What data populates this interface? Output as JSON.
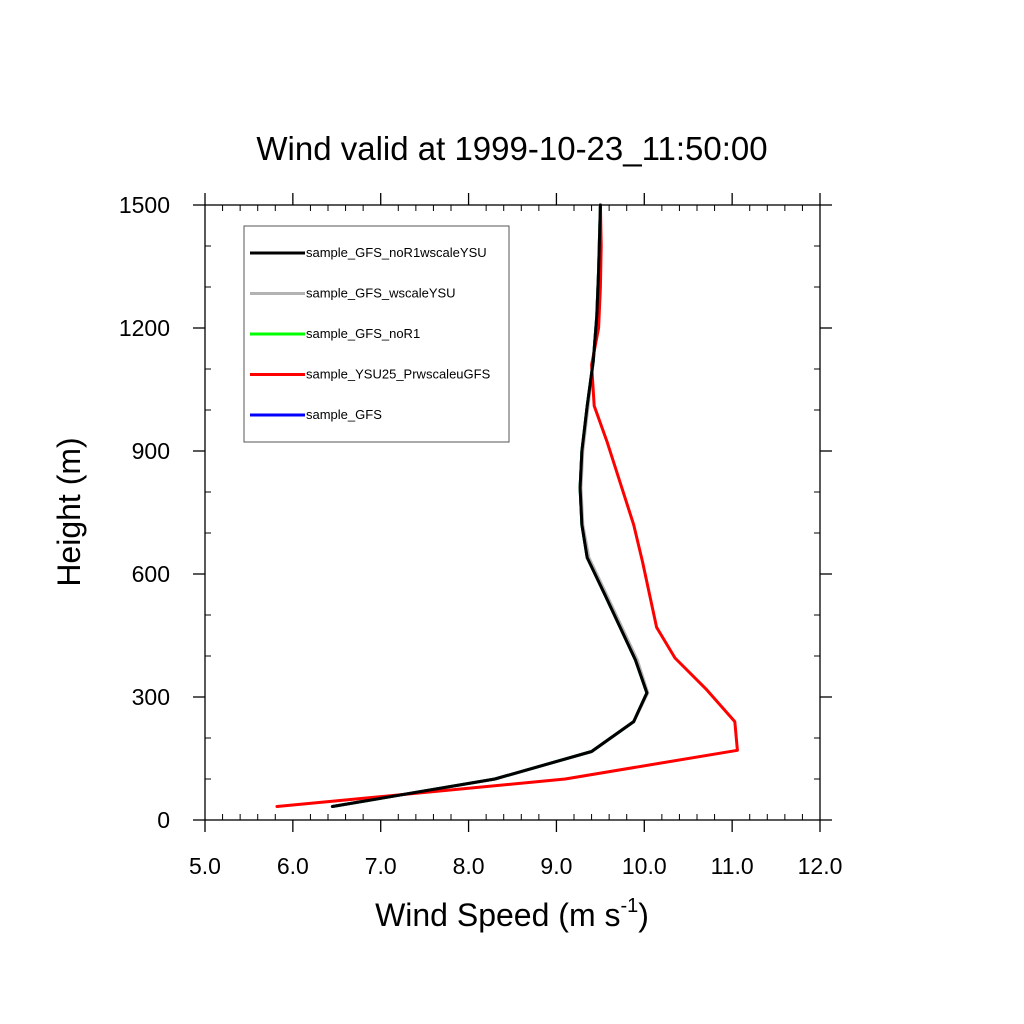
{
  "chart_data": {
    "type": "line",
    "title": "Wind valid at 1999-10-23_11:50:00",
    "xlabel": "Wind Speed (m s",
    "xlabel_sup": "-1",
    "xlabel_close": ")",
    "ylabel": "Height (m)",
    "xlim": [
      5.0,
      12.0
    ],
    "ylim": [
      0,
      1500
    ],
    "xticks": [
      "5.0",
      "6.0",
      "7.0",
      "8.0",
      "9.0",
      "10.0",
      "11.0",
      "12.0"
    ],
    "yticks": [
      "0",
      "300",
      "600",
      "900",
      "1200",
      "1500"
    ],
    "grid": false,
    "legend_position": "top-left",
    "series": [
      {
        "name": "sample_GFS",
        "color": "#0000ff",
        "x": [
          6.45,
          8.3,
          9.4,
          9.88,
          10.03,
          9.9,
          9.55,
          9.35,
          9.29,
          9.27,
          9.29,
          9.35,
          9.42,
          9.46,
          9.48,
          9.5
        ],
        "y": [
          33,
          100,
          167,
          240,
          310,
          390,
          550,
          640,
          720,
          810,
          900,
          1010,
          1120,
          1230,
          1340,
          1500
        ]
      },
      {
        "name": "sample_GFS_noR1",
        "color": "#00ff00",
        "x": [
          6.45,
          8.3,
          9.4,
          9.88,
          10.03,
          9.9,
          9.55,
          9.35,
          9.29,
          9.27,
          9.29,
          9.35,
          9.42,
          9.46,
          9.48,
          9.5
        ],
        "y": [
          33,
          100,
          167,
          240,
          310,
          390,
          550,
          640,
          720,
          810,
          900,
          1010,
          1120,
          1230,
          1340,
          1500
        ]
      },
      {
        "name": "sample_GFS_wscaleYSU",
        "color": "#b3b3b3",
        "x": [
          6.45,
          8.3,
          9.4,
          9.88,
          10.04,
          9.92,
          9.57,
          9.37,
          9.3,
          9.28,
          9.3,
          9.36,
          9.42,
          9.46,
          9.48,
          9.5
        ],
        "y": [
          33,
          100,
          167,
          240,
          310,
          390,
          550,
          640,
          720,
          810,
          900,
          1010,
          1120,
          1230,
          1340,
          1500
        ]
      },
      {
        "name": "sample_YSU25_PrwscaleuGFS",
        "color": "#ff0000",
        "x": [
          5.82,
          9.1,
          11.06,
          11.03,
          10.7,
          10.35,
          10.14,
          9.98,
          9.88,
          9.58,
          9.43,
          9.4,
          9.48,
          9.5,
          9.51,
          9.5
        ],
        "y": [
          33,
          100,
          170,
          240,
          320,
          395,
          470,
          630,
          720,
          920,
          1010,
          1110,
          1200,
          1300,
          1400,
          1500
        ]
      },
      {
        "name": "sample_GFS_noR1wscaleYSU",
        "color": "#000000",
        "x": [
          6.45,
          8.3,
          9.4,
          9.88,
          10.03,
          9.9,
          9.55,
          9.35,
          9.29,
          9.27,
          9.29,
          9.35,
          9.42,
          9.46,
          9.48,
          9.5
        ],
        "y": [
          33,
          100,
          167,
          240,
          310,
          390,
          550,
          640,
          720,
          810,
          900,
          1010,
          1120,
          1230,
          1340,
          1500
        ]
      }
    ],
    "legend_order": [
      "sample_GFS_noR1wscaleYSU",
      "sample_GFS_wscaleYSU",
      "sample_GFS_noR1",
      "sample_YSU25_PrwscaleuGFS",
      "sample_GFS"
    ]
  }
}
